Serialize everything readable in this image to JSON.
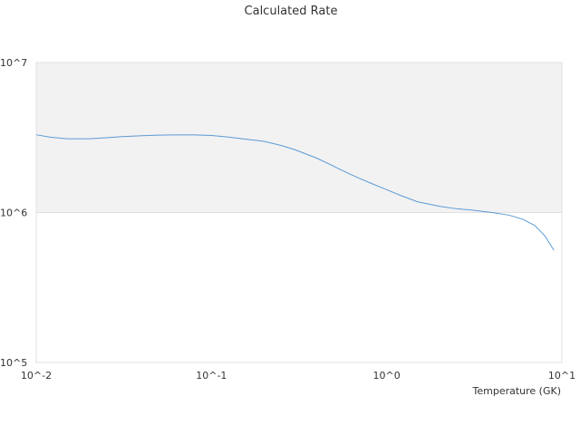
{
  "chart_data": {
    "type": "line",
    "title": "Calculated Rate",
    "xlabel": "Temperature (GK)",
    "ylabel": "",
    "x_scale": "log",
    "y_scale": "log",
    "xlim": [
      0.01,
      10
    ],
    "ylim": [
      100000,
      10000000
    ],
    "x_ticks": [
      "10^-2",
      "10^-1",
      "10^0",
      "10^1"
    ],
    "y_ticks": [
      "10^5",
      "10^6",
      "10^7"
    ],
    "band": {
      "y_from": 1000000,
      "y_to": 10000000,
      "color": "#f2f2f2"
    },
    "grid": false,
    "legend": "none",
    "series": [
      {
        "color": "#5b9bd5",
        "points": [
          [
            0.01,
            3300000
          ],
          [
            0.012,
            3180000
          ],
          [
            0.015,
            3100000
          ],
          [
            0.02,
            3100000
          ],
          [
            0.025,
            3150000
          ],
          [
            0.03,
            3200000
          ],
          [
            0.04,
            3250000
          ],
          [
            0.05,
            3280000
          ],
          [
            0.06,
            3290000
          ],
          [
            0.08,
            3290000
          ],
          [
            0.1,
            3260000
          ],
          [
            0.12,
            3200000
          ],
          [
            0.15,
            3100000
          ],
          [
            0.2,
            2980000
          ],
          [
            0.25,
            2800000
          ],
          [
            0.3,
            2620000
          ],
          [
            0.4,
            2300000
          ],
          [
            0.5,
            2030000
          ],
          [
            0.6,
            1830000
          ],
          [
            0.7,
            1690000
          ],
          [
            0.8,
            1580000
          ],
          [
            1.0,
            1420000
          ],
          [
            1.2,
            1300000
          ],
          [
            1.5,
            1180000
          ],
          [
            2.0,
            1100000
          ],
          [
            2.5,
            1060000
          ],
          [
            3.0,
            1040000
          ],
          [
            4.0,
            1000000
          ],
          [
            5.0,
            960000
          ],
          [
            6.0,
            900000
          ],
          [
            7.0,
            820000
          ],
          [
            8.0,
            700000
          ],
          [
            9.0,
            560000
          ]
        ]
      }
    ]
  }
}
